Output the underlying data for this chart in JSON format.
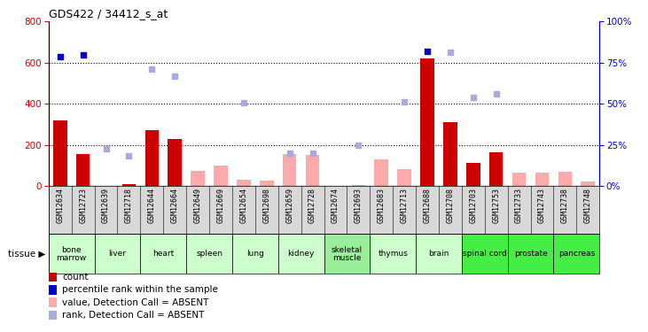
{
  "title": "GDS422 / 34412_s_at",
  "samples": [
    "GSM12634",
    "GSM12723",
    "GSM12639",
    "GSM12718",
    "GSM12644",
    "GSM12664",
    "GSM12649",
    "GSM12669",
    "GSM12654",
    "GSM12698",
    "GSM12659",
    "GSM12728",
    "GSM12674",
    "GSM12693",
    "GSM12683",
    "GSM12713",
    "GSM12688",
    "GSM12708",
    "GSM12703",
    "GSM12753",
    "GSM12733",
    "GSM12743",
    "GSM12738",
    "GSM12748"
  ],
  "tissues": [
    {
      "name": "bone\nmarrow",
      "start": 0,
      "end": 2,
      "color": "#ccffcc"
    },
    {
      "name": "liver",
      "start": 2,
      "end": 4,
      "color": "#ccffcc"
    },
    {
      "name": "heart",
      "start": 4,
      "end": 6,
      "color": "#ccffcc"
    },
    {
      "name": "spleen",
      "start": 6,
      "end": 8,
      "color": "#ccffcc"
    },
    {
      "name": "lung",
      "start": 8,
      "end": 10,
      "color": "#ccffcc"
    },
    {
      "name": "kidney",
      "start": 10,
      "end": 12,
      "color": "#ccffcc"
    },
    {
      "name": "skeletal\nmuscle",
      "start": 12,
      "end": 14,
      "color": "#99ee99"
    },
    {
      "name": "thymus",
      "start": 14,
      "end": 16,
      "color": "#ccffcc"
    },
    {
      "name": "brain",
      "start": 16,
      "end": 18,
      "color": "#ccffcc"
    },
    {
      "name": "spinal cord",
      "start": 18,
      "end": 20,
      "color": "#44ee44"
    },
    {
      "name": "prostate",
      "start": 20,
      "end": 22,
      "color": "#44ee44"
    },
    {
      "name": "pancreas",
      "start": 22,
      "end": 24,
      "color": "#44ee44"
    }
  ],
  "count_present": [
    320,
    155,
    0,
    10,
    270,
    230,
    0,
    0,
    0,
    5,
    0,
    0,
    0,
    5,
    0,
    0,
    620,
    310,
    110,
    165,
    0,
    0,
    0,
    0
  ],
  "count_absent": [
    false,
    false,
    false,
    false,
    false,
    false,
    true,
    true,
    true,
    true,
    true,
    true,
    true,
    true,
    true,
    true,
    false,
    false,
    false,
    false,
    true,
    true,
    true,
    true
  ],
  "absent_bar": [
    0,
    0,
    0,
    0,
    0,
    0,
    75,
    100,
    30,
    25,
    155,
    150,
    0,
    5,
    130,
    80,
    0,
    0,
    0,
    0,
    65,
    65,
    70,
    20
  ],
  "pct_present": [
    630,
    640,
    0,
    0,
    0,
    0,
    0,
    0,
    0,
    0,
    0,
    0,
    0,
    0,
    0,
    0,
    655,
    0,
    0,
    0,
    0,
    0,
    0,
    0
  ],
  "pct_absent": [
    0,
    0,
    180,
    145,
    570,
    535,
    0,
    0,
    405,
    0,
    160,
    160,
    0,
    200,
    0,
    410,
    0,
    650,
    430,
    450,
    0,
    0,
    0,
    0
  ],
  "ylim_left": [
    0,
    800
  ],
  "ylim_right": [
    0,
    100
  ],
  "yticks_left": [
    0,
    200,
    400,
    600,
    800
  ],
  "yticks_right": [
    0,
    25,
    50,
    75,
    100
  ],
  "bar_red": "#cc0000",
  "bar_pink": "#ffaaaa",
  "dot_blue": "#0000cc",
  "dot_lblue": "#aaaadd",
  "legend": [
    {
      "color": "#cc0000",
      "label": "count"
    },
    {
      "color": "#0000cc",
      "label": "percentile rank within the sample"
    },
    {
      "color": "#ffaaaa",
      "label": "value, Detection Call = ABSENT"
    },
    {
      "color": "#aaaadd",
      "label": "rank, Detection Call = ABSENT"
    }
  ]
}
